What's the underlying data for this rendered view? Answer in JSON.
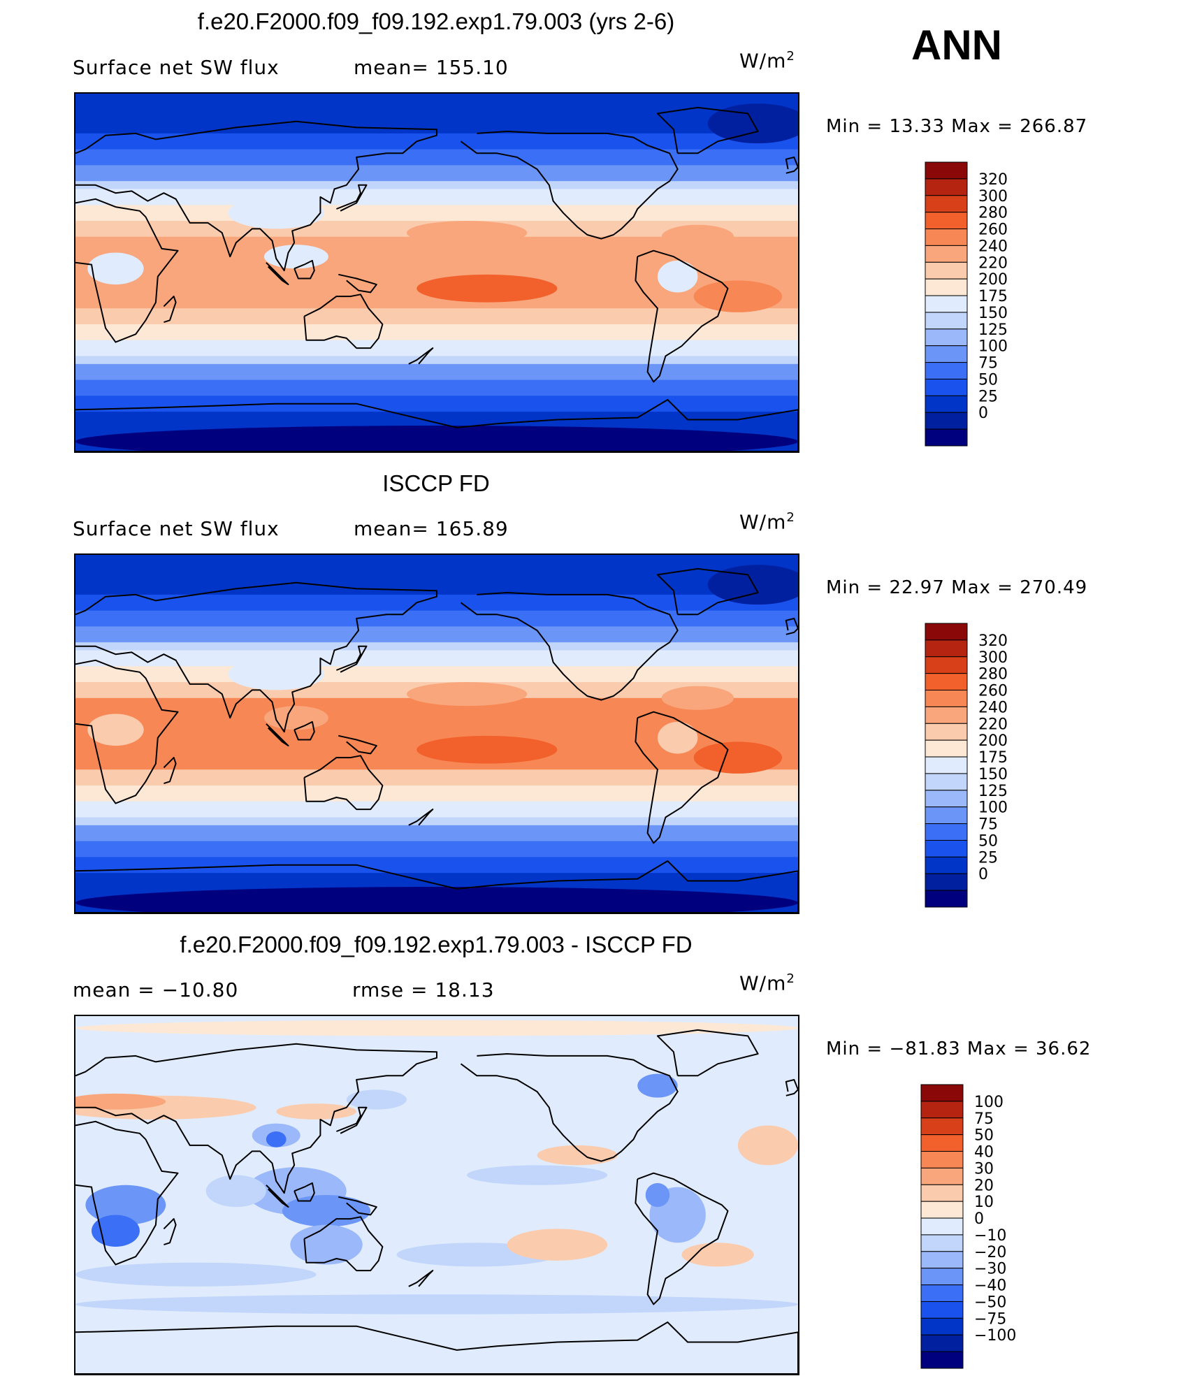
{
  "season": "ANN",
  "colors": {
    "abs_scale": [
      "#00007f",
      "#0020a0",
      "#0035c8",
      "#1a52ee",
      "#3a6ff6",
      "#6b96f8",
      "#9ab8fa",
      "#c2d6fb",
      "#e0ecfd",
      "#fde8d6",
      "#fbcbad",
      "#f9a67c",
      "#f78754",
      "#f2602c",
      "#d8401a",
      "#b52410",
      "#8a0808"
    ],
    "diff_scale": [
      "#00007f",
      "#0020a0",
      "#0035c8",
      "#1a52ee",
      "#3a6ff6",
      "#6b96f8",
      "#9ab8fa",
      "#c2d6fb",
      "#e0ecfd",
      "#fde8d6",
      "#fbcbad",
      "#f9a67c",
      "#f78754",
      "#f2602c",
      "#d8401a",
      "#b52410",
      "#8a0808"
    ]
  },
  "panels": [
    {
      "title": "f.e20.F2000.f09_f09.192.exp1.79.003 (yrs 2-6)",
      "variable": "Surface net SW flux",
      "stat1": "mean=  155.10",
      "stat2": "",
      "units_base": "W/m",
      "units_exp": "2",
      "minmax": "Min  =    13.33  Max  =  266.87",
      "colorbar_labels": [
        "320",
        "300",
        "280",
        "260",
        "240",
        "220",
        "200",
        "175",
        "150",
        "125",
        "100",
        "75",
        "50",
        "25",
        "0"
      ]
    },
    {
      "title": "ISCCP FD",
      "variable": "Surface net SW flux",
      "stat1": "mean=  165.89",
      "stat2": "",
      "units_base": "W/m",
      "units_exp": "2",
      "minmax": "Min  =    22.97  Max  =  270.49",
      "colorbar_labels": [
        "320",
        "300",
        "280",
        "260",
        "240",
        "220",
        "200",
        "175",
        "150",
        "125",
        "100",
        "75",
        "50",
        "25",
        "0"
      ]
    },
    {
      "title": "f.e20.F2000.f09_f09.192.exp1.79.003 - ISCCP FD",
      "variable": "",
      "stat1": "mean  =  −10.80",
      "stat2": "rmse  =    18.13",
      "units_base": "W/m",
      "units_exp": "2",
      "minmax": "Min  =  −81.83  Max  =    36.62",
      "colorbar_labels": [
        "100",
        "75",
        "50",
        "40",
        "30",
        "20",
        "10",
        "0",
        "−10",
        "−20",
        "−30",
        "−40",
        "−50",
        "−75",
        "−100"
      ]
    }
  ],
  "chart_data": [
    {
      "type": "heatmap",
      "title": "f.e20.F2000.f09_f09.192.exp1.79.003 (yrs 2-6)",
      "subtitle": "Surface net SW flux",
      "units": "W/m2",
      "mean": 155.1,
      "min": 13.33,
      "max": 266.87,
      "contour_levels": [
        0,
        25,
        50,
        75,
        100,
        125,
        150,
        175,
        200,
        220,
        240,
        260,
        280,
        300,
        320
      ]
    },
    {
      "type": "heatmap",
      "title": "ISCCP FD",
      "subtitle": "Surface net SW flux",
      "units": "W/m2",
      "mean": 165.89,
      "min": 22.97,
      "max": 270.49,
      "contour_levels": [
        0,
        25,
        50,
        75,
        100,
        125,
        150,
        175,
        200,
        220,
        240,
        260,
        280,
        300,
        320
      ]
    },
    {
      "type": "heatmap",
      "title": "f.e20.F2000.f09_f09.192.exp1.79.003 - ISCCP FD",
      "units": "W/m2",
      "mean": -10.8,
      "rmse": 18.13,
      "min": -81.83,
      "max": 36.62,
      "contour_levels": [
        -100,
        -75,
        -50,
        -40,
        -30,
        -20,
        -10,
        0,
        10,
        20,
        30,
        40,
        50,
        75,
        100
      ]
    }
  ]
}
